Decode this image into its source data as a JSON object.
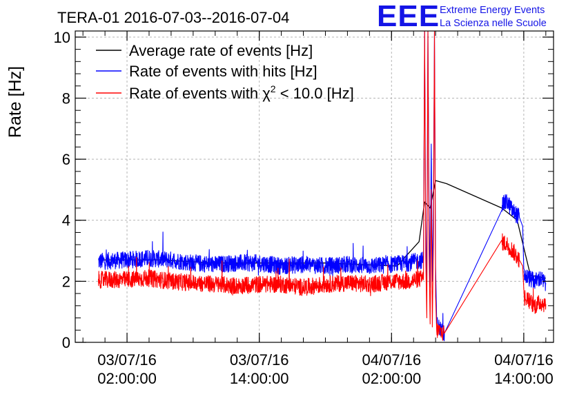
{
  "header": {
    "title": "TERA-01 2016-07-03--2016-07-04",
    "logo_text": "EEE",
    "logo_line1": "Extreme Energy Events",
    "logo_line2": "La Scienza nelle Scuole"
  },
  "colors": {
    "logo": "#1414e6",
    "average": "#000000",
    "hits": "#0000ff",
    "chi2": "#ff0000",
    "grid": "#b4b4b4"
  },
  "chart_data": {
    "type": "line",
    "title": "TERA-01 2016-07-03--2016-07-04",
    "ylabel": "Rate [Hz]",
    "xlabel": "",
    "x_unit": "hours since 03/07/16 00:00:00",
    "xlim": [
      -2.7,
      40.7
    ],
    "ylim": [
      0,
      10.2
    ],
    "y_ticks": [
      0,
      2,
      4,
      6,
      8,
      10
    ],
    "x_ticks": [
      {
        "x": 2,
        "date": "03/07/16",
        "time": "02:00:00"
      },
      {
        "x": 14,
        "date": "03/07/16",
        "time": "14:00:00"
      },
      {
        "x": 26,
        "date": "04/07/16",
        "time": "02:00:00"
      },
      {
        "x": 38,
        "date": "04/07/16",
        "time": "14:00:00"
      }
    ],
    "grid": true,
    "legend_position": "top-left",
    "series": [
      {
        "name": "Average rate of events [Hz]",
        "key": "average",
        "points": [
          [
            -0.6,
            2.7
          ],
          [
            5,
            2.7
          ],
          [
            10,
            2.6
          ],
          [
            15,
            2.6
          ],
          [
            20,
            2.6
          ],
          [
            26.5,
            2.5
          ],
          [
            28.5,
            3.3
          ],
          [
            29.0,
            4.6
          ],
          [
            29.5,
            4.4
          ],
          [
            30.0,
            5.3
          ],
          [
            31.0,
            5.2
          ],
          [
            36.0,
            4.4
          ],
          [
            37.4,
            4.0
          ],
          [
            38.6,
            2.2
          ],
          [
            40.0,
            2.1
          ]
        ]
      },
      {
        "name": "Rate of events with hits [Hz]",
        "key": "hits",
        "points": [
          [
            -0.6,
            2.65
          ],
          [
            2,
            2.7
          ],
          [
            4,
            2.75
          ],
          [
            6,
            2.7
          ],
          [
            8,
            2.6
          ],
          [
            10,
            2.55
          ],
          [
            12,
            2.6
          ],
          [
            14,
            2.6
          ],
          [
            16,
            2.5
          ],
          [
            18,
            2.55
          ],
          [
            20,
            2.5
          ],
          [
            22,
            2.55
          ],
          [
            24,
            2.5
          ],
          [
            26,
            2.55
          ],
          [
            27.5,
            2.6
          ],
          [
            28.9,
            2.7
          ],
          [
            29.0,
            10.2
          ],
          [
            29.1,
            4.0
          ],
          [
            29.2,
            1.5
          ],
          [
            29.3,
            10.2
          ],
          [
            29.4,
            4.6
          ],
          [
            29.5,
            1.8
          ],
          [
            29.6,
            6.5
          ],
          [
            29.7,
            2.0
          ],
          [
            29.8,
            4.5
          ],
          [
            29.9,
            10.2
          ],
          [
            30.0,
            2.5
          ],
          [
            30.1,
            0.6
          ],
          [
            30.5,
            0.4
          ],
          [
            30.8,
            0.3
          ],
          [
            36.0,
            4.5
          ],
          [
            36.5,
            4.6
          ],
          [
            37.0,
            4.3
          ],
          [
            37.6,
            4.1
          ],
          [
            37.9,
            3.8
          ],
          [
            38.0,
            2.2
          ],
          [
            39.0,
            2.0
          ],
          [
            39.5,
            2.1
          ],
          [
            40.0,
            1.9
          ]
        ]
      },
      {
        "name": "Rate of events with χ² < 10.0 [Hz]",
        "key": "chi2",
        "points": [
          [
            -0.6,
            2.05
          ],
          [
            2,
            2.05
          ],
          [
            4,
            2.1
          ],
          [
            6,
            2.0
          ],
          [
            8,
            1.95
          ],
          [
            10,
            1.9
          ],
          [
            12,
            1.85
          ],
          [
            14,
            1.9
          ],
          [
            16,
            1.9
          ],
          [
            18,
            1.8
          ],
          [
            20,
            1.9
          ],
          [
            22,
            1.95
          ],
          [
            24,
            1.9
          ],
          [
            26,
            2.0
          ],
          [
            27.5,
            2.0
          ],
          [
            28.9,
            2.1
          ],
          [
            29.0,
            10.2
          ],
          [
            29.1,
            2.8
          ],
          [
            29.2,
            0.8
          ],
          [
            29.3,
            10.2
          ],
          [
            29.4,
            3.0
          ],
          [
            29.5,
            0.6
          ],
          [
            29.6,
            5.0
          ],
          [
            29.7,
            0.5
          ],
          [
            29.8,
            3.2
          ],
          [
            29.9,
            10.2
          ],
          [
            30.0,
            1.5
          ],
          [
            30.1,
            0.4
          ],
          [
            30.5,
            0.35
          ],
          [
            30.8,
            0.3
          ],
          [
            36.0,
            3.3
          ],
          [
            36.5,
            3.2
          ],
          [
            37.0,
            3.0
          ],
          [
            37.6,
            2.7
          ],
          [
            37.9,
            2.5
          ],
          [
            38.0,
            1.5
          ],
          [
            39.0,
            1.2
          ],
          [
            39.5,
            1.3
          ],
          [
            40.0,
            1.25
          ]
        ]
      }
    ]
  }
}
